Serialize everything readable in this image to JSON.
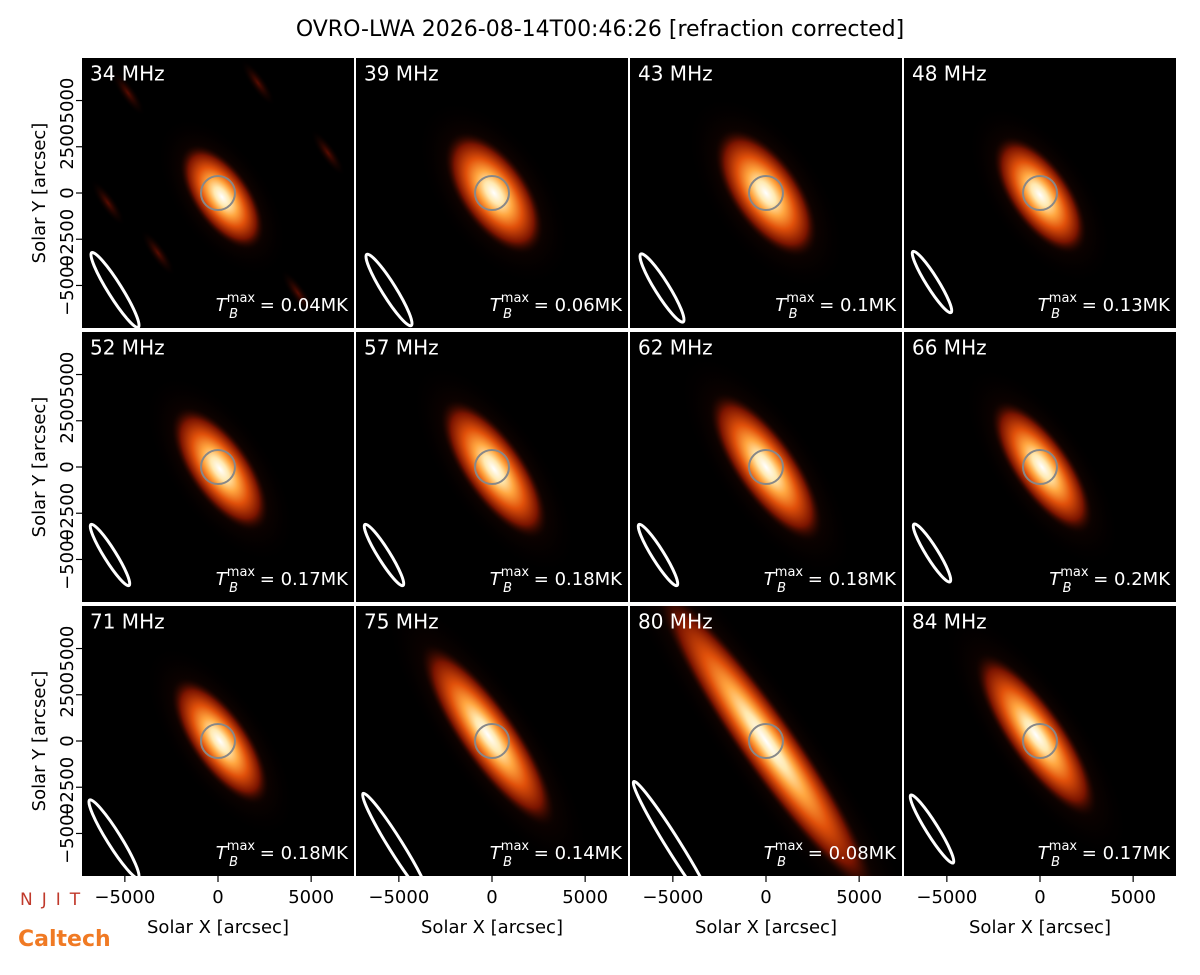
{
  "chart_data": {
    "type": "image-grid",
    "title": "OVRO-LWA 2026-08-14T00:46:26 [refraction corrected]",
    "xlabel": "Solar X [arcsec]",
    "ylabel": "Solar Y [arcsec]",
    "xlim": [
      -7300,
      7300
    ],
    "ylim": [
      -7300,
      7300
    ],
    "xticks": [
      {
        "value": -5000,
        "label": "−5000"
      },
      0,
      5000
    ],
    "yticks": [
      {
        "value": -5000,
        "label": "−5000"
      },
      {
        "value": -2500,
        "label": "−2500"
      },
      0,
      2500,
      5000
    ],
    "tmax_symbol": {
      "main": "T",
      "sub": "B",
      "sup": "max",
      "eq": " = "
    },
    "panels": [
      {
        "label": "34 MHz",
        "tmax": {
          "value": 0.04,
          "label": "0.04MK"
        }
      },
      {
        "label": "39 MHz",
        "tmax": {
          "value": 0.06,
          "label": "0.06MK"
        }
      },
      {
        "label": "43 MHz",
        "tmax": {
          "value": 0.1,
          "label": "0.1MK"
        }
      },
      {
        "label": "48 MHz",
        "tmax": {
          "value": 0.13,
          "label": "0.13MK"
        }
      },
      {
        "label": "52 MHz",
        "tmax": {
          "value": 0.17,
          "label": "0.17MK"
        }
      },
      {
        "label": "57 MHz",
        "tmax": {
          "value": 0.18,
          "label": "0.18MK"
        }
      },
      {
        "label": "62 MHz",
        "tmax": {
          "value": 0.18,
          "label": "0.18MK"
        }
      },
      {
        "label": "66 MHz",
        "tmax": {
          "value": 0.2,
          "label": "0.2MK"
        }
      },
      {
        "label": "71 MHz",
        "tmax": {
          "value": 0.18,
          "label": "0.18MK"
        }
      },
      {
        "label": "75 MHz",
        "tmax": {
          "value": 0.14,
          "label": "0.14MK"
        }
      },
      {
        "label": "80 MHz",
        "tmax": {
          "value": 0.08,
          "label": "0.08MK"
        }
      },
      {
        "label": "84 MHz",
        "tmax": {
          "value": 0.17,
          "label": "0.17MK"
        }
      }
    ]
  },
  "logos": {
    "top": "NJIT",
    "bottom": "Caltech"
  }
}
